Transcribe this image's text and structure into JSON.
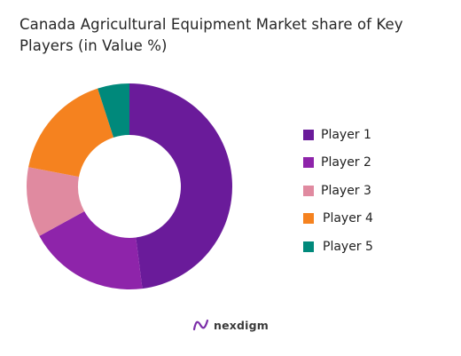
{
  "chart_data": {
    "type": "pie",
    "title": "Canada Agricultural Equipment Market share of Key Players (in Value %)",
    "categories": [
      "Player 1",
      "Player 2",
      "Player 3",
      "Player 4",
      "Player 5"
    ],
    "values": [
      48,
      19,
      11,
      17,
      5
    ],
    "colors": [
      "#6a1b9a",
      "#8e24aa",
      "#e08aa0",
      "#f5821f",
      "#00897b"
    ],
    "legend_position": "right",
    "donut": true
  },
  "brand": {
    "name": "nexdigm"
  }
}
